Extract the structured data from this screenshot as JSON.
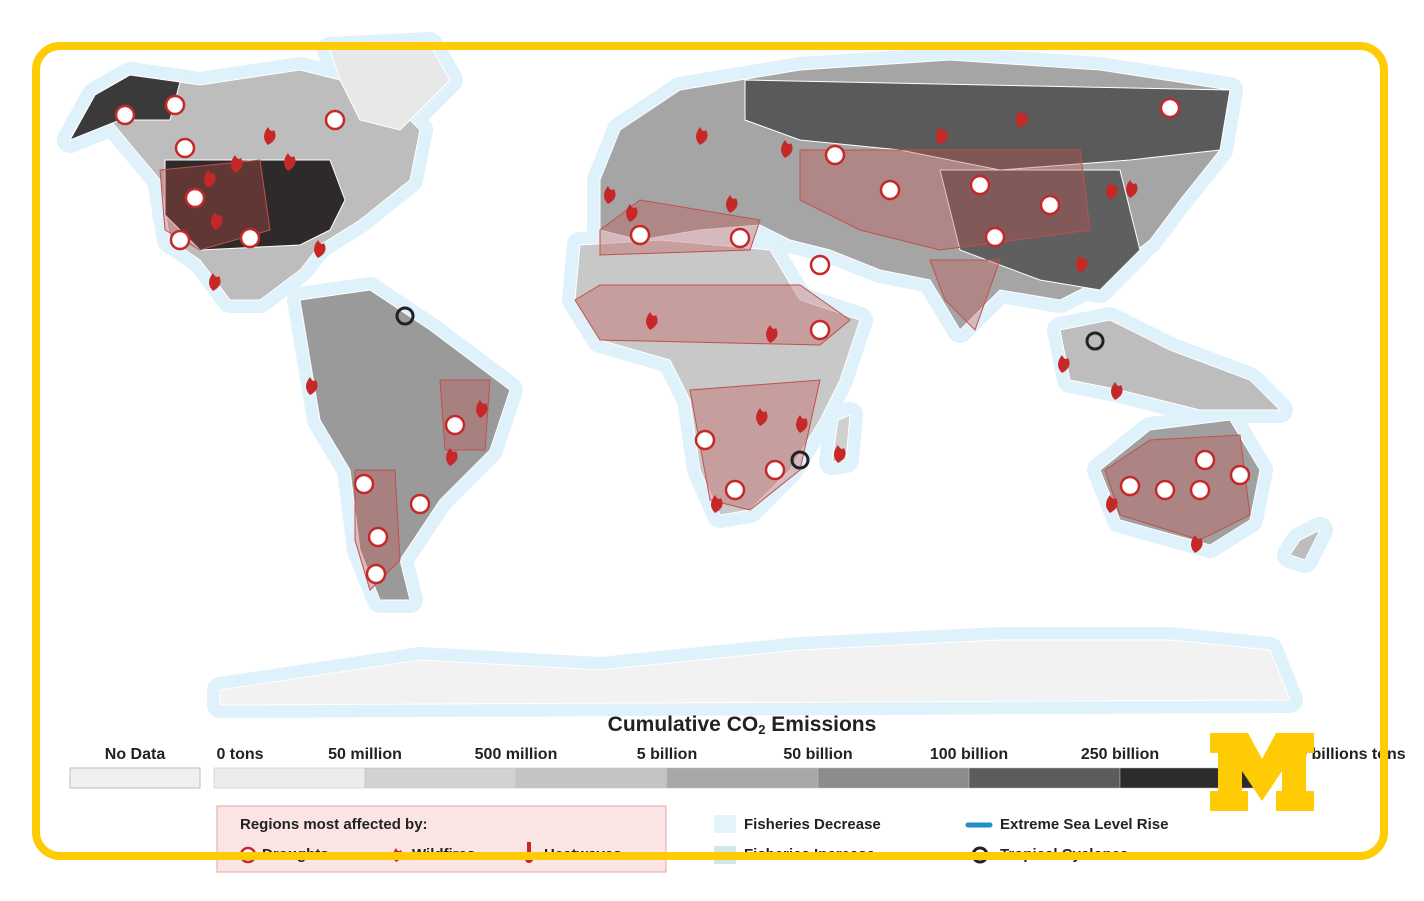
{
  "legend": {
    "title": {
      "main": "Cumulative CO",
      "sub": "2",
      "end": " Emissions"
    },
    "no_data": "No Data",
    "bins": [
      "0 tons",
      "50 million",
      "500 million",
      "5 billion",
      "50 billion",
      "100 billion",
      "250 billion",
      ">400 billions tons"
    ],
    "impacts": {
      "heading": "Regions most affected by:",
      "items": [
        "Droughts",
        "Wildfires",
        "Heatwaves"
      ]
    },
    "other": [
      "Fisheries Decrease",
      "Extreme Sea Level Rise",
      "Fisheries Increase",
      "Tropical Cyclones"
    ]
  }
}
